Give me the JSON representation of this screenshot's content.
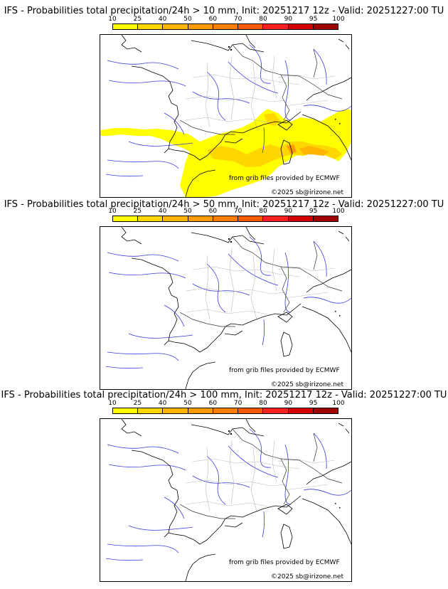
{
  "colorbar": {
    "ticks": [
      "10",
      "25",
      "40",
      "50",
      "60",
      "70",
      "80",
      "90",
      "95",
      "100"
    ],
    "colors": [
      "#ffff00",
      "#ffd700",
      "#ffb400",
      "#ff9a00",
      "#ff8000",
      "#ff5a00",
      "#ff2020",
      "#d40000",
      "#a00000",
      "#6a0000"
    ]
  },
  "panels": [
    {
      "title": "IFS - Probabilities total precipitation/24h > 10 mm, Init: 20251217 12z - Valid: 20251227:00 TU",
      "threshold_mm": 10,
      "has_precip_field": true,
      "credit": "from grib files provided by ECMWF",
      "copyright": "©2025 sb@irizone.net"
    },
    {
      "title": "IFS - Probabilities total precipitation/24h > 50 mm, Init: 20251217 12z - Valid: 20251227:00 TU",
      "threshold_mm": 50,
      "has_precip_field": false,
      "credit": "from grib files provided by ECMWF",
      "copyright": "©2025 sb@irizone.net"
    },
    {
      "title": "IFS - Probabilities total precipitation/24h > 100 mm, Init: 20251217 12z - Valid: 20251227:00 TU",
      "threshold_mm": 100,
      "has_precip_field": false,
      "credit": "from grib files provided by ECMWF",
      "copyright": "©2025 sb@irizone.net"
    }
  ]
}
